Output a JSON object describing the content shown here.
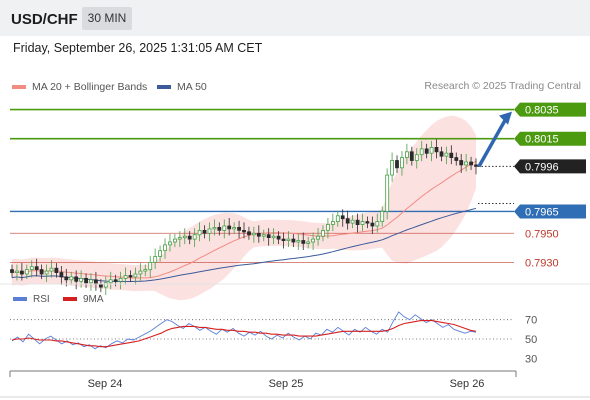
{
  "header": {
    "symbol": "USD/CHF",
    "interval": "30 MIN",
    "datetime": "Friday, September 26, 2025 1:31:05 AM CET",
    "credit": "Research © 2025 Trading Central"
  },
  "colors": {
    "green": "#4c9a10",
    "blue": "#2f6db5",
    "red_level": "#c0392b",
    "ma20": "#f28b82",
    "ma50": "#3b5b9a",
    "bollinger_fill": "#fbdcdc",
    "candle_up": "#46a046",
    "candle_down": "#2b2b2b",
    "rsi": "#5b7fd6",
    "rsi_ma": "#d62020"
  },
  "chart_data": [
    {
      "type": "candlestick",
      "x_labels": [
        "Sep 24",
        "Sep 25",
        "Sep 26"
      ],
      "legend": [
        {
          "name": "MA 20 + Bollinger Bands",
          "color": "#f28b82"
        },
        {
          "name": "MA 50",
          "color": "#3b5b9a"
        }
      ],
      "ylim": [
        0.79165,
        0.80416
      ],
      "levels": [
        {
          "value": 0.8035,
          "label": "0.8035",
          "style": "resistance"
        },
        {
          "value": 0.8015,
          "label": "0.8015",
          "style": "resistance"
        },
        {
          "value": 0.7996,
          "label": "0.7996",
          "style": "current"
        },
        {
          "value": 0.7965,
          "label": "0.7965",
          "style": "pivot"
        },
        {
          "value": 0.795,
          "label": "0.7950",
          "style": "support"
        },
        {
          "value": 0.793,
          "label": "0.7930",
          "style": "support"
        }
      ],
      "close": [
        0.7923,
        0.7924,
        0.7922,
        0.7925,
        0.7927,
        0.7925,
        0.7922,
        0.7924,
        0.7926,
        0.7923,
        0.792,
        0.7918,
        0.792,
        0.7917,
        0.7919,
        0.7916,
        0.7918,
        0.7915,
        0.7913,
        0.7916,
        0.7918,
        0.7917,
        0.7919,
        0.7921,
        0.792,
        0.7922,
        0.7924,
        0.7925,
        0.793,
        0.7934,
        0.7938,
        0.7942,
        0.7944,
        0.7946,
        0.7947,
        0.7948,
        0.7946,
        0.7949,
        0.7952,
        0.795,
        0.7953,
        0.7954,
        0.7952,
        0.7955,
        0.7953,
        0.7954,
        0.7952,
        0.7951,
        0.7949,
        0.795,
        0.7948,
        0.7949,
        0.7947,
        0.7948,
        0.7946,
        0.7945,
        0.7946,
        0.7944,
        0.7945,
        0.7943,
        0.7944,
        0.7946,
        0.7948,
        0.7952,
        0.7956,
        0.7958,
        0.7962,
        0.796,
        0.7957,
        0.7959,
        0.7956,
        0.7958,
        0.7957,
        0.7955,
        0.7958,
        0.7965,
        0.799,
        0.8,
        0.7995,
        0.8002,
        0.8006,
        0.8,
        0.8004,
        0.8008,
        0.8005,
        0.8009,
        0.8006,
        0.8003,
        0.8005,
        0.8002,
        0.8,
        0.7997,
        0.7999,
        0.7997,
        0.7996
      ]
    },
    {
      "type": "line",
      "legend": [
        {
          "name": "RSI",
          "color": "#5b7fd6"
        },
        {
          "name": "9MA",
          "color": "#d62020"
        }
      ],
      "x_labels": [
        "Sep 24",
        "Sep 25",
        "Sep 26"
      ],
      "ylim": [
        20,
        80
      ],
      "y_ticks": [
        70,
        50,
        30
      ],
      "series": [
        {
          "name": "RSI",
          "values": [
            48,
            52,
            47,
            55,
            50,
            45,
            50,
            53,
            49,
            45,
            48,
            44,
            46,
            42,
            44,
            40,
            43,
            41,
            45,
            48,
            46,
            50,
            49,
            52,
            55,
            58,
            62,
            66,
            70,
            68,
            64,
            61,
            66,
            63,
            59,
            62,
            58,
            55,
            60,
            57,
            61,
            56,
            53,
            57,
            54,
            58,
            53,
            50,
            54,
            51,
            56,
            52,
            49,
            53,
            50,
            56,
            54,
            60,
            57,
            62,
            58,
            54,
            60,
            57,
            62,
            58,
            55,
            60,
            57,
            68,
            78,
            73,
            70,
            75,
            71,
            67,
            70,
            66,
            62,
            65,
            60,
            58,
            56,
            58,
            57
          ]
        },
        {
          "name": "9MA",
          "values": [
            49,
            50,
            50,
            51,
            50,
            49,
            49,
            49,
            48,
            48,
            47,
            46,
            45,
            44,
            43,
            43,
            42,
            42,
            43,
            44,
            45,
            46,
            47,
            48,
            50,
            52,
            54,
            56,
            59,
            61,
            62,
            63,
            63,
            63,
            62,
            62,
            61,
            60,
            60,
            59,
            59,
            58,
            58,
            57,
            57,
            56,
            56,
            55,
            55,
            54,
            54,
            54,
            53,
            53,
            53,
            53,
            54,
            55,
            56,
            57,
            58,
            58,
            58,
            58,
            58,
            58,
            58,
            58,
            59,
            61,
            64,
            66,
            67,
            68,
            69,
            69,
            69,
            68,
            67,
            66,
            65,
            63,
            61,
            59,
            58
          ]
        }
      ]
    }
  ]
}
